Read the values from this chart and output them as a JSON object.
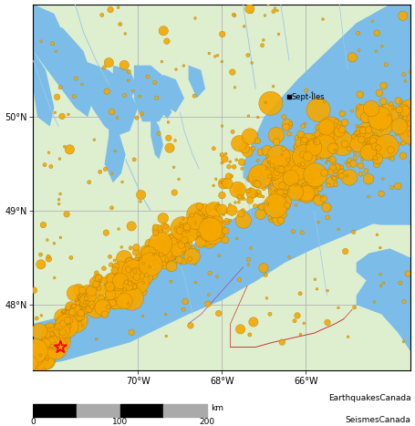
{
  "lon_min": -72.5,
  "lon_max": -63.5,
  "lat_min": 47.3,
  "lat_max": 51.2,
  "fig_width": 4.55,
  "fig_height": 4.67,
  "bg_land_color": "#deefd0",
  "bg_water_color": "#7bbde8",
  "grid_color": "#aaaaaa",
  "river_color": "#9ec8e8",
  "border_color": "#cc3333",
  "xlabel_ticks": [
    -70,
    -68,
    -66
  ],
  "xlabel_labels": [
    "70°W",
    "68°W",
    "66°W"
  ],
  "ylabel_ticks": [
    48,
    49,
    50
  ],
  "ylabel_labels": [
    "48°N",
    "49°N",
    "50°N"
  ],
  "city_name": "Sept-Îles",
  "city_lon": -66.4,
  "city_lat": 50.22,
  "star_lon": -71.85,
  "star_lat": 47.55,
  "credit_line1": "EarthquakesCanada",
  "credit_line2": "SeismesCanada",
  "dot_color": "#f5a800",
  "dot_edge_color": "#b07800",
  "dot_alpha": 0.9
}
